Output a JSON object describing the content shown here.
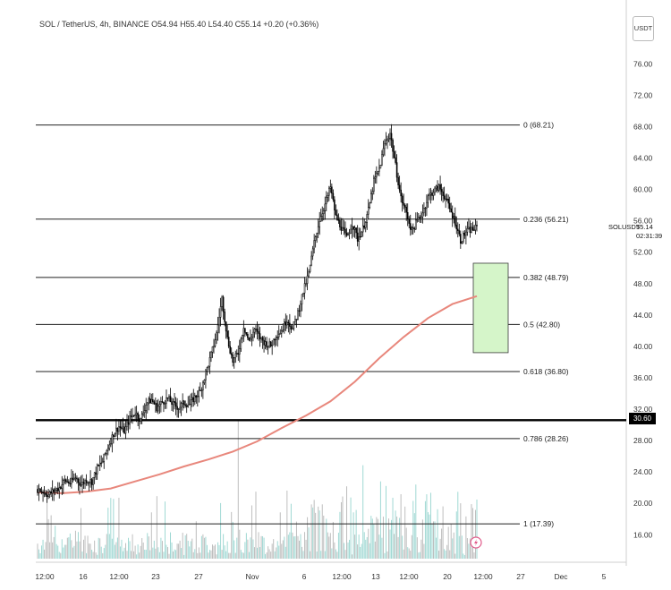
{
  "header": {
    "pair": "SOL / TetherUS",
    "interval": "4h",
    "exchange": "BINANCE",
    "ohlc": "O54.94 H55.40 L54.40 C55.14 +0.20 (+0.36%)"
  },
  "currency": "USDT",
  "symbol_tag": "SOLUSDT",
  "last_price": "55.14",
  "countdown": "02:31:39",
  "level_badge": "30.60",
  "colors": {
    "up_candle": "#ffffff",
    "candle_border": "#000000",
    "ma_line": "#e8877c",
    "volume": "#9fd8d3",
    "volume_dark": "#bdbdbd",
    "zone_fill": "#d5f5c9",
    "zone_border": "#3a3a3a",
    "fib_line": "#222222"
  },
  "chart_data": {
    "type": "candlestick",
    "yaxis": {
      "ticks": [
        "76.00",
        "72.00",
        "68.00",
        "64.00",
        "60.00",
        "56.00",
        "52.00",
        "48.00",
        "44.00",
        "40.00",
        "36.00",
        "32.00",
        "28.00",
        "24.00",
        "20.00",
        "16.00"
      ],
      "range": [
        12.5,
        79
      ]
    },
    "xaxis": {
      "ticks": [
        "12:00",
        "16",
        "12:00",
        "23",
        "27",
        "Nov",
        "6",
        "12:00",
        "13",
        "12:00",
        "20",
        "12:00",
        "27",
        "Dec",
        "5"
      ]
    },
    "fib_levels": [
      {
        "label": "0 (68.21)",
        "value": 68.21
      },
      {
        "label": "0.236 (56.21)",
        "value": 56.21
      },
      {
        "label": "0.382 (48.79)",
        "value": 48.79
      },
      {
        "label": "0.5 (42.80)",
        "value": 42.8
      },
      {
        "label": "0.618 (36.80)",
        "value": 36.8
      },
      {
        "label": "0.786 (28.26)",
        "value": 28.26
      },
      {
        "label": "1 (17.39)",
        "value": 17.39
      }
    ],
    "horizontal_level": 30.6,
    "zone": {
      "top": 50.6,
      "bottom": 39.2
    },
    "price_path": [
      [
        0,
        21.8
      ],
      [
        4,
        21.5
      ],
      [
        8,
        21.1
      ],
      [
        12,
        21.6
      ],
      [
        16,
        22.0
      ],
      [
        20,
        22.9
      ],
      [
        24,
        22.6
      ],
      [
        28,
        23.3
      ],
      [
        32,
        22.4
      ],
      [
        36,
        23.0
      ],
      [
        40,
        22.8
      ],
      [
        44,
        24.5
      ],
      [
        48,
        25.4
      ],
      [
        52,
        27.2
      ],
      [
        56,
        28.9
      ],
      [
        60,
        29.8
      ],
      [
        64,
        29.2
      ],
      [
        68,
        30.8
      ],
      [
        72,
        31.6
      ],
      [
        76,
        30.6
      ],
      [
        80,
        32.7
      ],
      [
        84,
        33.2
      ],
      [
        88,
        32.2
      ],
      [
        92,
        32.9
      ],
      [
        96,
        33.4
      ],
      [
        100,
        32.6
      ],
      [
        104,
        32.2
      ],
      [
        108,
        32.8
      ],
      [
        112,
        32.6
      ],
      [
        116,
        33.5
      ],
      [
        120,
        34.3
      ],
      [
        124,
        36.6
      ],
      [
        128,
        38.9
      ],
      [
        132,
        41.6
      ],
      [
        136,
        46.1
      ],
      [
        140,
        41.0
      ],
      [
        144,
        38.1
      ],
      [
        148,
        39.2
      ],
      [
        152,
        42.6
      ],
      [
        156,
        40.6
      ],
      [
        160,
        42.2
      ],
      [
        164,
        41.1
      ],
      [
        168,
        40.4
      ],
      [
        172,
        40.1
      ],
      [
        176,
        41.5
      ],
      [
        180,
        42.0
      ],
      [
        184,
        43.5
      ],
      [
        188,
        42.2
      ],
      [
        192,
        44.3
      ],
      [
        196,
        47.0
      ],
      [
        200,
        49.3
      ],
      [
        204,
        53.2
      ],
      [
        208,
        56.2
      ],
      [
        212,
        58.1
      ],
      [
        216,
        60.3
      ],
      [
        220,
        56.5
      ],
      [
        224,
        55.2
      ],
      [
        228,
        53.8
      ],
      [
        232,
        55.7
      ],
      [
        236,
        53.7
      ],
      [
        240,
        55.0
      ],
      [
        244,
        57.3
      ],
      [
        248,
        61.0
      ],
      [
        252,
        62.6
      ],
      [
        256,
        65.8
      ],
      [
        260,
        67.2
      ],
      [
        264,
        63.0
      ],
      [
        268,
        58.9
      ],
      [
        272,
        57.0
      ],
      [
        276,
        54.7
      ],
      [
        280,
        56.0
      ],
      [
        284,
        57.1
      ],
      [
        288,
        59.0
      ],
      [
        292,
        59.8
      ],
      [
        296,
        60.3
      ],
      [
        300,
        59.2
      ],
      [
        304,
        57.5
      ],
      [
        308,
        55.9
      ],
      [
        312,
        53.5
      ],
      [
        316,
        54.6
      ],
      [
        320,
        54.9
      ],
      [
        324,
        55.1
      ]
    ],
    "ma_path": [
      [
        0,
        21.4
      ],
      [
        20,
        21.3
      ],
      [
        40,
        21.5
      ],
      [
        60,
        21.9
      ],
      [
        80,
        22.8
      ],
      [
        100,
        23.7
      ],
      [
        120,
        24.7
      ],
      [
        140,
        25.6
      ],
      [
        160,
        26.6
      ],
      [
        180,
        27.9
      ],
      [
        200,
        29.6
      ],
      [
        220,
        31.2
      ],
      [
        240,
        33.0
      ],
      [
        260,
        35.5
      ],
      [
        280,
        38.5
      ],
      [
        300,
        41.2
      ],
      [
        320,
        43.6
      ],
      [
        340,
        45.4
      ],
      [
        360,
        46.4
      ]
    ]
  }
}
